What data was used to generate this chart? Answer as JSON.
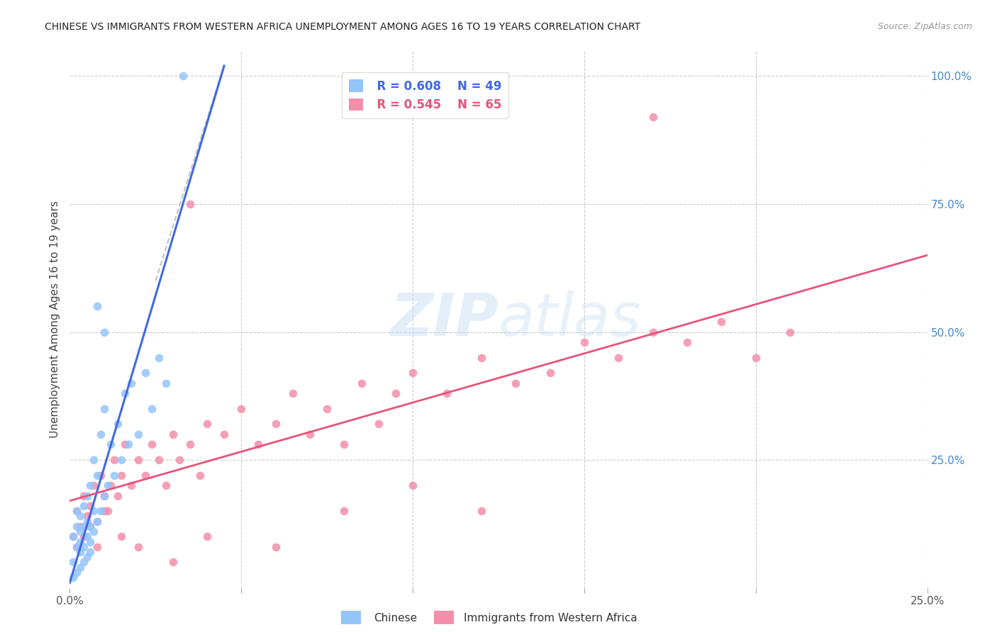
{
  "title": "CHINESE VS IMMIGRANTS FROM WESTERN AFRICA UNEMPLOYMENT AMONG AGES 16 TO 19 YEARS CORRELATION CHART",
  "source": "Source: ZipAtlas.com",
  "ylabel": "Unemployment Among Ages 16 to 19 years",
  "xlim": [
    0.0,
    0.25
  ],
  "ylim": [
    0.0,
    1.05
  ],
  "legend_r_chinese": "R = 0.608",
  "legend_n_chinese": "N = 49",
  "legend_r_western": "R = 0.545",
  "legend_n_western": "N = 65",
  "color_chinese": "#92C5FC",
  "color_western": "#F48FAB",
  "color_line_chinese": "#4169E1",
  "color_line_western": "#E8537A",
  "watermark": "ZIPatlas",
  "blue_line_x": [
    0.0,
    0.045
  ],
  "blue_line_y": [
    0.01,
    1.02
  ],
  "dash_line_x": [
    0.0,
    0.045
  ],
  "dash_line_y": [
    0.01,
    1.02
  ],
  "pink_line_x": [
    0.0,
    0.25
  ],
  "pink_line_y": [
    0.17,
    0.65
  ],
  "chinese_x": [
    0.001,
    0.001,
    0.002,
    0.002,
    0.002,
    0.003,
    0.003,
    0.003,
    0.003,
    0.004,
    0.004,
    0.004,
    0.005,
    0.005,
    0.005,
    0.006,
    0.006,
    0.006,
    0.007,
    0.007,
    0.007,
    0.008,
    0.008,
    0.009,
    0.009,
    0.01,
    0.01,
    0.011,
    0.012,
    0.013,
    0.014,
    0.015,
    0.016,
    0.017,
    0.018,
    0.02,
    0.022,
    0.024,
    0.026,
    0.028,
    0.001,
    0.002,
    0.003,
    0.004,
    0.005,
    0.006,
    0.033,
    0.01,
    0.008
  ],
  "chinese_y": [
    0.05,
    0.1,
    0.08,
    0.12,
    0.15,
    0.07,
    0.09,
    0.11,
    0.14,
    0.08,
    0.12,
    0.16,
    0.1,
    0.13,
    0.18,
    0.09,
    0.12,
    0.2,
    0.11,
    0.15,
    0.25,
    0.13,
    0.22,
    0.15,
    0.3,
    0.18,
    0.35,
    0.2,
    0.28,
    0.22,
    0.32,
    0.25,
    0.38,
    0.28,
    0.4,
    0.3,
    0.42,
    0.35,
    0.45,
    0.4,
    0.02,
    0.03,
    0.04,
    0.05,
    0.06,
    0.07,
    1.0,
    0.5,
    0.55
  ],
  "western_x": [
    0.001,
    0.002,
    0.003,
    0.004,
    0.005,
    0.006,
    0.007,
    0.008,
    0.009,
    0.01,
    0.011,
    0.012,
    0.013,
    0.014,
    0.015,
    0.016,
    0.018,
    0.02,
    0.022,
    0.024,
    0.026,
    0.028,
    0.03,
    0.032,
    0.035,
    0.038,
    0.04,
    0.045,
    0.05,
    0.055,
    0.06,
    0.065,
    0.07,
    0.075,
    0.08,
    0.085,
    0.09,
    0.095,
    0.1,
    0.11,
    0.12,
    0.13,
    0.14,
    0.15,
    0.16,
    0.17,
    0.18,
    0.19,
    0.2,
    0.21,
    0.002,
    0.004,
    0.006,
    0.008,
    0.01,
    0.015,
    0.02,
    0.03,
    0.04,
    0.06,
    0.08,
    0.1,
    0.12,
    0.035,
    0.17
  ],
  "western_y": [
    0.1,
    0.15,
    0.12,
    0.18,
    0.14,
    0.16,
    0.2,
    0.13,
    0.22,
    0.18,
    0.15,
    0.2,
    0.25,
    0.18,
    0.22,
    0.28,
    0.2,
    0.25,
    0.22,
    0.28,
    0.25,
    0.2,
    0.3,
    0.25,
    0.28,
    0.22,
    0.32,
    0.3,
    0.35,
    0.28,
    0.32,
    0.38,
    0.3,
    0.35,
    0.28,
    0.4,
    0.32,
    0.38,
    0.42,
    0.38,
    0.45,
    0.4,
    0.42,
    0.48,
    0.45,
    0.5,
    0.48,
    0.52,
    0.45,
    0.5,
    0.08,
    0.1,
    0.12,
    0.08,
    0.15,
    0.1,
    0.08,
    0.05,
    0.1,
    0.08,
    0.15,
    0.2,
    0.15,
    0.75,
    0.92
  ]
}
